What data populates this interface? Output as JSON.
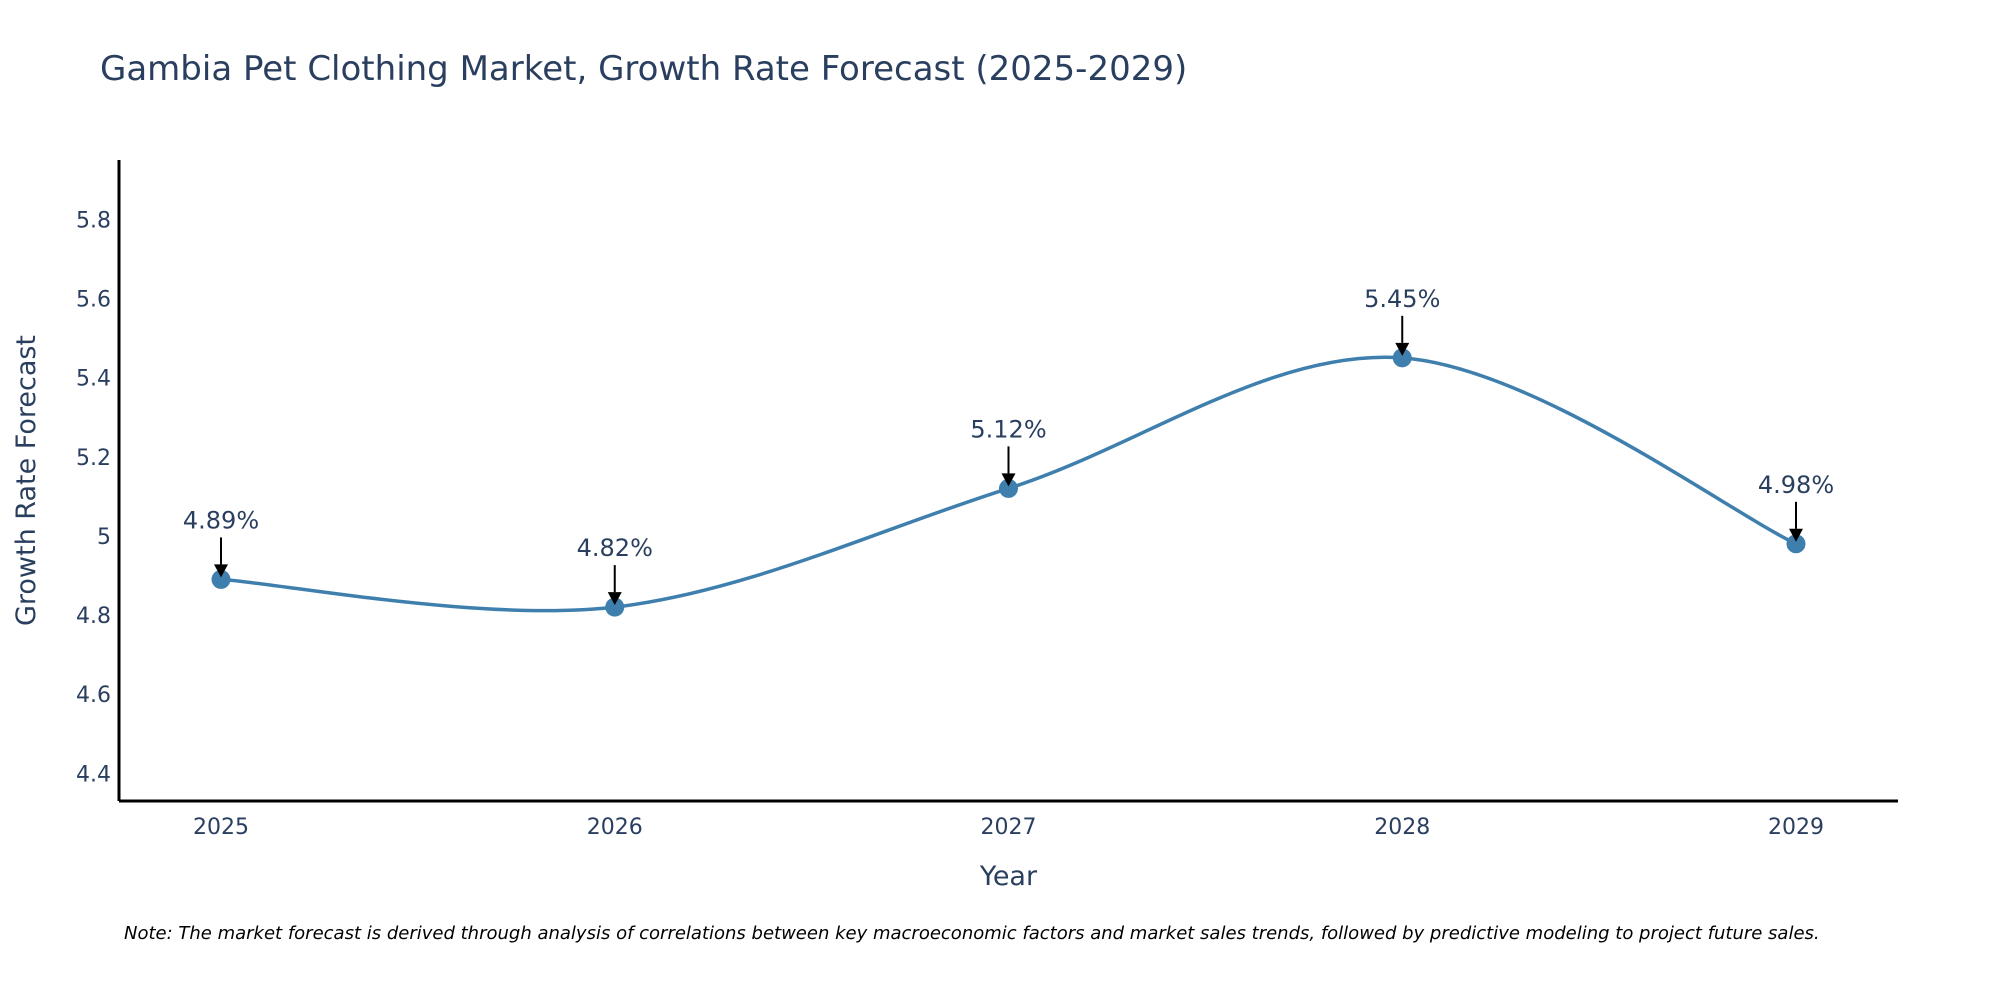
{
  "chart_data": {
    "type": "line",
    "title": "Gambia Pet Clothing Market, Growth Rate Forecast (2025-2029)",
    "xlabel": "Year",
    "ylabel": "Growth Rate Forecast",
    "categories": [
      "2025",
      "2026",
      "2027",
      "2028",
      "2029"
    ],
    "values": [
      4.89,
      4.82,
      5.12,
      5.45,
      4.98
    ],
    "data_labels": [
      "4.89%",
      "4.82%",
      "5.12%",
      "5.45%",
      "4.98%"
    ],
    "ylim": [
      4.33,
      5.95
    ],
    "yticks": [
      4.4,
      4.6,
      4.8,
      5,
      5.2,
      5.4,
      5.6,
      5.8
    ],
    "ytick_labels": [
      "4.4",
      "4.6",
      "4.8",
      "5",
      "5.2",
      "5.4",
      "5.6",
      "5.8"
    ],
    "line_shape": "spline",
    "grid": false,
    "series_color": "#3f7fae",
    "note": "Note: The market forecast is derived through analysis of correlations between key macroeconomic factors and market sales trends, followed by predictive modeling to project future sales."
  }
}
